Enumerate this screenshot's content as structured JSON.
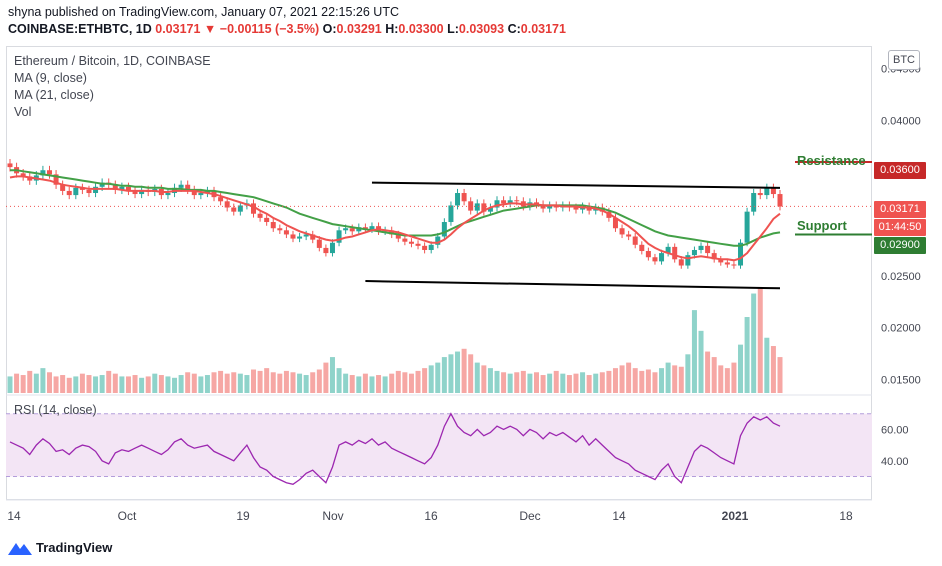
{
  "header": {
    "publisher": "shyna published on TradingView.com, January 07, 2021 22:15:26 UTC",
    "symbol": "COINBASE:ETHBTC, 1D",
    "last": "0.03171",
    "arrow": "▼",
    "change": "−0.00115 (−3.5%)",
    "o_label": "O:",
    "o_value": "0.03291",
    "h_label": "H:",
    "h_value": "0.03300",
    "l_label": "L:",
    "l_value": "0.03093",
    "c_label": "C:",
    "c_value": "0.03171"
  },
  "legend": {
    "title": "Ethereum / Bitcoin, 1D, COINBASE",
    "ma9": "MA (9, close)",
    "ma21": "MA (21, close)",
    "vol": "Vol",
    "rsi": "RSI (14, close)"
  },
  "currency_badge": "BTC",
  "annotations": {
    "resistance": "Resistance",
    "support": "Support"
  },
  "price_tags": {
    "resistance": "0.03600",
    "last": "0.03171",
    "countdown": "01:44:50",
    "support": "0.02900"
  },
  "footer": {
    "brand": "TradingView"
  },
  "colors": {
    "up": "#26a69a",
    "down": "#ef5350",
    "vol_up": "#8fd3ca",
    "vol_down": "#f6a7a4",
    "ma9": "#ef5350",
    "ma21": "#43a047",
    "rsi_line": "#9c27b0",
    "rsi_band": "#f3e5f5",
    "resistance": "#2e7d32",
    "support": "#2e7d32",
    "resistance_tag": "#c62828",
    "support_tag": "#2e7d32",
    "last_tag": "#ef5350"
  },
  "chart_data": {
    "type": "candlestick",
    "price_axis": [
      "0.04500",
      "0.04000",
      "0.03600",
      "0.03171",
      "0.02900",
      "0.02500",
      "0.02000",
      "0.01500"
    ],
    "price_axis_values": [
      0.045,
      0.04,
      0.036,
      0.03171,
      0.029,
      0.025,
      0.02,
      0.015
    ],
    "rsi_axis": [
      "60.00",
      "40.00"
    ],
    "rsi_axis_values": [
      60,
      40
    ],
    "x_labels": [
      "14",
      "Oct",
      "19",
      "Nov",
      "16",
      "Dec",
      "14",
      "2021",
      "18"
    ],
    "x_label_bold": [
      false,
      false,
      false,
      false,
      false,
      false,
      false,
      true,
      false
    ],
    "levels": {
      "resistance": 0.036,
      "support": 0.029
    },
    "channel": {
      "upper": [
        [
          0.034,
          0.0335
        ]
      ],
      "lower": [
        [
          0.0245,
          0.0238
        ]
      ]
    },
    "closes": [
      0.0355,
      0.0349,
      0.0346,
      0.0342,
      0.0347,
      0.0352,
      0.0348,
      0.0338,
      0.0332,
      0.0328,
      0.0335,
      0.0333,
      0.033,
      0.0336,
      0.034,
      0.0338,
      0.0333,
      0.0336,
      0.0332,
      0.0329,
      0.0333,
      0.0331,
      0.0334,
      0.0328,
      0.033,
      0.0335,
      0.0338,
      0.0333,
      0.0328,
      0.033,
      0.0332,
      0.0326,
      0.0322,
      0.0316,
      0.0312,
      0.0318,
      0.032,
      0.031,
      0.0306,
      0.0302,
      0.0296,
      0.0294,
      0.029,
      0.0286,
      0.0288,
      0.029,
      0.0285,
      0.0277,
      0.0272,
      0.0282,
      0.0294,
      0.0296,
      0.0293,
      0.0297,
      0.0295,
      0.0298,
      0.0293,
      0.0294,
      0.029,
      0.0286,
      0.0283,
      0.0281,
      0.0279,
      0.0275,
      0.028,
      0.0288,
      0.0302,
      0.0318,
      0.033,
      0.0322,
      0.0313,
      0.032,
      0.0312,
      0.0316,
      0.0323,
      0.032,
      0.0323,
      0.0322,
      0.0317,
      0.0321,
      0.0319,
      0.0315,
      0.0318,
      0.0316,
      0.0318,
      0.0316,
      0.0314,
      0.0317,
      0.0313,
      0.0316,
      0.0312,
      0.0306,
      0.0296,
      0.029,
      0.0288,
      0.028,
      0.0274,
      0.0268,
      0.0264,
      0.0272,
      0.0278,
      0.0266,
      0.026,
      0.027,
      0.0275,
      0.0279,
      0.0272,
      0.0266,
      0.0263,
      0.0261,
      0.026,
      0.0282,
      0.0312,
      0.033,
      0.0328,
      0.0335,
      0.0329,
      0.0317
    ],
    "volumes": [
      12,
      14,
      13,
      16,
      14,
      18,
      15,
      12,
      13,
      11,
      12,
      14,
      13,
      12,
      13,
      16,
      14,
      12,
      12,
      13,
      11,
      12,
      14,
      13,
      12,
      11,
      13,
      15,
      14,
      12,
      13,
      15,
      16,
      14,
      15,
      14,
      13,
      17,
      16,
      18,
      15,
      14,
      16,
      15,
      14,
      13,
      15,
      17,
      22,
      26,
      18,
      14,
      13,
      12,
      14,
      12,
      13,
      12,
      14,
      16,
      15,
      14,
      16,
      18,
      20,
      22,
      26,
      28,
      30,
      32,
      28,
      22,
      20,
      18,
      16,
      15,
      14,
      15,
      16,
      14,
      15,
      13,
      14,
      16,
      14,
      13,
      14,
      15,
      13,
      14,
      15,
      16,
      18,
      20,
      22,
      18,
      16,
      17,
      15,
      18,
      22,
      20,
      19,
      28,
      60,
      45,
      30,
      26,
      20,
      18,
      22,
      35,
      55,
      72,
      76,
      40,
      34,
      26
    ],
    "ma9": [
      0.0345,
      0.0346,
      0.0346,
      0.0345,
      0.0344,
      0.0343,
      0.0342,
      0.034,
      0.0338,
      0.0337,
      0.0336,
      0.0335,
      0.0334,
      0.0334,
      0.0334,
      0.0334,
      0.0334,
      0.0333,
      0.0332,
      0.0332,
      0.0332,
      0.0332,
      0.0332,
      0.0331,
      0.0331,
      0.0332,
      0.0332,
      0.0332,
      0.0332,
      0.0331,
      0.033,
      0.0329,
      0.0327,
      0.0325,
      0.0323,
      0.0321,
      0.0319,
      0.0317,
      0.0313,
      0.031,
      0.0306,
      0.0303,
      0.0299,
      0.0296,
      0.0293,
      0.0291,
      0.0289,
      0.0287,
      0.0285,
      0.0284,
      0.0285,
      0.0287,
      0.0288,
      0.029,
      0.0292,
      0.0294,
      0.0295,
      0.0294,
      0.0293,
      0.0292,
      0.029,
      0.0288,
      0.0286,
      0.0284,
      0.0282,
      0.0282,
      0.0285,
      0.029,
      0.0296,
      0.0301,
      0.0305,
      0.0309,
      0.0313,
      0.0316,
      0.0318,
      0.0319,
      0.032,
      0.032,
      0.0319,
      0.0319,
      0.0319,
      0.0318,
      0.0318,
      0.0318,
      0.0317,
      0.0317,
      0.0317,
      0.0316,
      0.0316,
      0.0315,
      0.0313,
      0.031,
      0.0306,
      0.0302,
      0.0298,
      0.0293,
      0.0287,
      0.0281,
      0.0277,
      0.0274,
      0.0272,
      0.027,
      0.0268,
      0.0267,
      0.0268,
      0.0269,
      0.0268,
      0.0267,
      0.0266,
      0.0266,
      0.0265,
      0.0267,
      0.0272,
      0.028,
      0.0288,
      0.0296,
      0.0305,
      0.031
    ],
    "ma21": [
      0.0352,
      0.0352,
      0.0351,
      0.035,
      0.0349,
      0.0348,
      0.0347,
      0.0346,
      0.0345,
      0.0344,
      0.0343,
      0.0342,
      0.0341,
      0.034,
      0.0339,
      0.0339,
      0.0338,
      0.0337,
      0.0337,
      0.0336,
      0.0336,
      0.0335,
      0.0335,
      0.0335,
      0.0334,
      0.0334,
      0.0334,
      0.0333,
      0.0333,
      0.0333,
      0.0332,
      0.0332,
      0.0331,
      0.033,
      0.0329,
      0.0328,
      0.0327,
      0.0326,
      0.0324,
      0.0322,
      0.032,
      0.0318,
      0.0316,
      0.0313,
      0.031,
      0.0308,
      0.0306,
      0.0304,
      0.0302,
      0.03,
      0.0299,
      0.0298,
      0.0297,
      0.0296,
      0.0295,
      0.0294,
      0.0293,
      0.0292,
      0.0291,
      0.029,
      0.0289,
      0.0289,
      0.0289,
      0.0289,
      0.0289,
      0.029,
      0.0292,
      0.0295,
      0.0298,
      0.0301,
      0.0303,
      0.0305,
      0.0307,
      0.0309,
      0.0311,
      0.0313,
      0.0314,
      0.0315,
      0.0316,
      0.0317,
      0.0318,
      0.0318,
      0.0318,
      0.0318,
      0.0318,
      0.0318,
      0.0318,
      0.0318,
      0.0317,
      0.0316,
      0.0315,
      0.0313,
      0.0311,
      0.0308,
      0.0305,
      0.0302,
      0.0299,
      0.0296,
      0.0293,
      0.0291,
      0.0289,
      0.0288,
      0.0287,
      0.0286,
      0.0285,
      0.0284,
      0.0283,
      0.0282,
      0.0281,
      0.028,
      0.0279,
      0.0279,
      0.0281,
      0.0284,
      0.0287,
      0.0289,
      0.0291,
      0.0292
    ],
    "rsi": [
      52,
      50,
      48,
      44,
      50,
      54,
      51,
      46,
      47,
      44,
      48,
      50,
      49,
      46,
      40,
      38,
      45,
      47,
      46,
      48,
      50,
      48,
      46,
      44,
      47,
      52,
      54,
      50,
      48,
      49,
      50,
      46,
      44,
      42,
      40,
      45,
      50,
      42,
      36,
      34,
      30,
      28,
      26,
      25,
      28,
      32,
      34,
      30,
      26,
      36,
      50,
      52,
      50,
      53,
      51,
      54,
      50,
      52,
      48,
      46,
      44,
      42,
      40,
      38,
      42,
      50,
      62,
      70,
      62,
      58,
      56,
      60,
      56,
      58,
      62,
      60,
      62,
      60,
      56,
      60,
      58,
      54,
      58,
      56,
      58,
      55,
      52,
      56,
      50,
      54,
      50,
      46,
      42,
      40,
      38,
      34,
      32,
      30,
      28,
      34,
      38,
      30,
      26,
      36,
      46,
      50,
      48,
      45,
      42,
      40,
      38,
      56,
      64,
      68,
      66,
      68,
      64,
      62
    ]
  }
}
